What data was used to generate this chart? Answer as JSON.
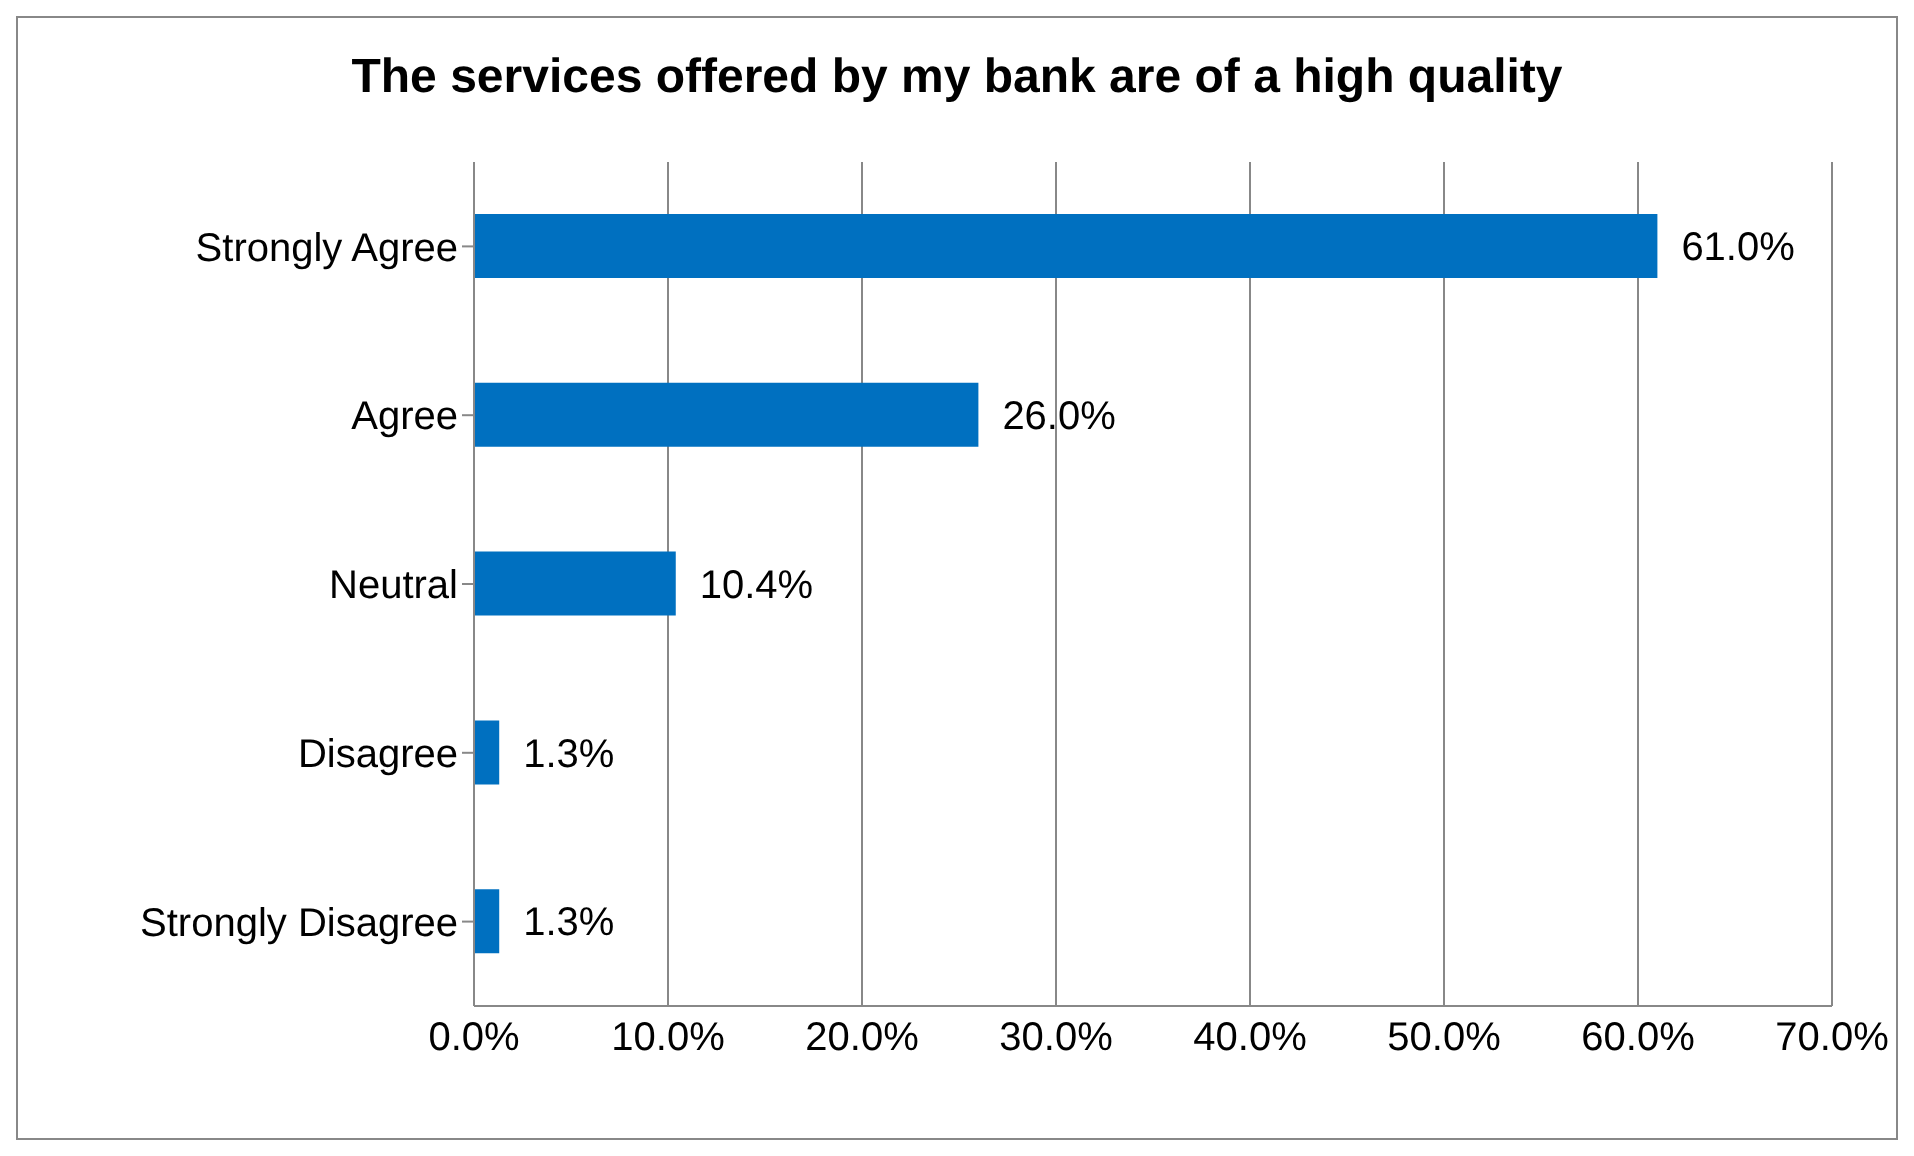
{
  "chart_data": {
    "type": "bar",
    "orientation": "horizontal",
    "title": "The services offered by my bank are of a high quality",
    "categories": [
      "Strongly Agree",
      "Agree",
      "Neutral",
      "Disagree",
      "Strongly Disagree"
    ],
    "values": [
      61.0,
      26.0,
      10.4,
      1.3,
      1.3
    ],
    "value_labels": [
      "61.0%",
      "26.0%",
      "10.4%",
      "1.3%",
      "1.3%"
    ],
    "color": "#0070c0",
    "xlim": [
      0,
      70
    ],
    "xticks": [
      {
        "value": 0,
        "label": "0.0%"
      },
      {
        "value": 10,
        "label": "10.0%"
      },
      {
        "value": 20,
        "label": "20.0%"
      },
      {
        "value": 30,
        "label": "30.0%"
      },
      {
        "value": 40,
        "label": "40.0%"
      },
      {
        "value": 50,
        "label": "50.0%"
      },
      {
        "value": 60,
        "label": "60.0%"
      },
      {
        "value": 70,
        "label": "70.0%"
      }
    ],
    "grid": "x",
    "legend": false
  }
}
